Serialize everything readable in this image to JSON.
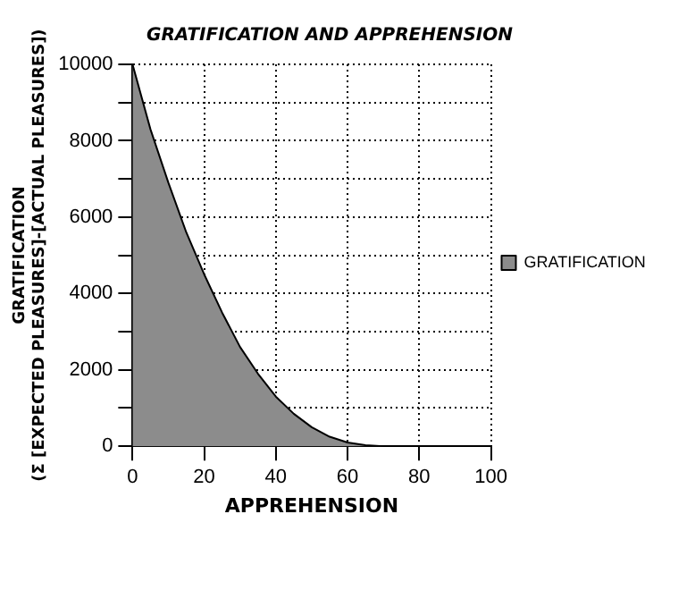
{
  "chart_data": {
    "type": "area",
    "title": "GRATIFICATION AND APPREHENSION",
    "xlabel": "APPREHENSION",
    "ylabel": "GRATIFICATION\n(Σ [EXPECTED PLEASURES]-[ACTUAL PLEASURES])",
    "x": [
      0,
      5,
      10,
      15,
      20,
      25,
      30,
      35,
      40,
      45,
      50,
      55,
      60,
      65,
      70,
      80,
      90,
      100
    ],
    "series": [
      {
        "name": "GRATIFICATION",
        "color": "#8c8c8c",
        "values": [
          10000,
          8300,
          6900,
          5600,
          4500,
          3500,
          2600,
          1900,
          1300,
          850,
          500,
          250,
          100,
          30,
          0,
          0,
          0,
          0
        ]
      }
    ],
    "xlim": [
      0,
      100
    ],
    "xticks": [
      0,
      20,
      40,
      60,
      80,
      100
    ],
    "ylim": [
      0,
      10000
    ],
    "yticks": [
      0,
      {
        "value": 1000,
        "label": null
      },
      2000,
      {
        "value": 3000,
        "label": null
      },
      4000,
      {
        "value": 5000,
        "label": null
      },
      6000,
      {
        "value": 7000,
        "label": null
      },
      8000,
      {
        "value": 9000,
        "label": null
      },
      10000
    ],
    "grid": true,
    "legend": "right",
    "marker": "none"
  }
}
